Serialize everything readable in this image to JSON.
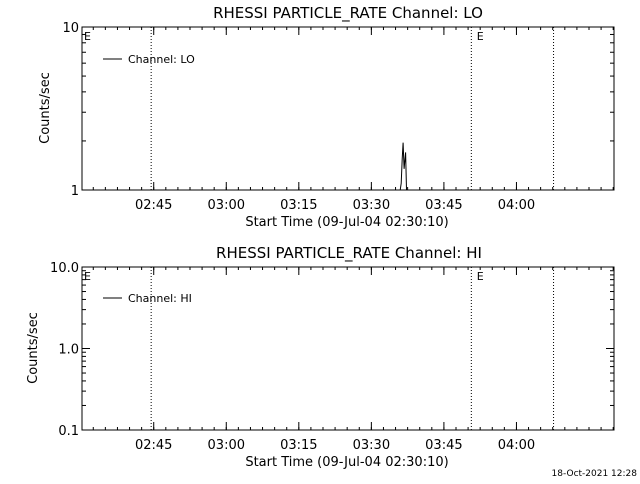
{
  "footer": {
    "timestamp": "18-Oct-2021 12:28"
  },
  "chart_data": [
    {
      "type": "line",
      "title": "RHESSI PARTICLE_RATE Channel: LO",
      "xlabel": "Start Time (09-Jul-04 02:30:10)",
      "ylabel": "Counts/sec",
      "yscale": "log",
      "ylim": [
        1,
        10
      ],
      "xlim_minutes": [
        0,
        110
      ],
      "ytick_values": [
        1,
        10
      ],
      "ytick_labels": [
        "1",
        "10"
      ],
      "xtick_values": [
        14.83,
        29.83,
        44.83,
        59.83,
        74.83,
        89.83
      ],
      "xtick_labels": [
        "02:45",
        "03:00",
        "03:15",
        "03:30",
        "03:45",
        "04:00"
      ],
      "legend": {
        "label": "Channel: LO",
        "position": "top-left"
      },
      "vertical_lines": [
        14.3,
        80.5,
        97.5
      ],
      "markers": [
        {
          "label": "E",
          "x": 0
        },
        {
          "label": "E",
          "x": 81.2
        }
      ],
      "series": [
        {
          "name": "Channel: LO",
          "x": [
            65.8,
            66.0,
            66.2,
            66.4,
            66.6,
            66.9,
            67.1
          ],
          "y": [
            1.0,
            1.1,
            1.55,
            1.95,
            1.35,
            1.7,
            1.0
          ]
        }
      ]
    },
    {
      "type": "line",
      "title": "RHESSI PARTICLE_RATE Channel: HI",
      "xlabel": "Start Time (09-Jul-04 02:30:10)",
      "ylabel": "Counts/sec",
      "yscale": "log",
      "ylim": [
        0.1,
        10
      ],
      "xlim_minutes": [
        0,
        110
      ],
      "ytick_values": [
        0.1,
        1.0,
        10.0
      ],
      "ytick_labels": [
        "0.1",
        "1.0",
        "10.0"
      ],
      "xtick_values": [
        14.83,
        29.83,
        44.83,
        59.83,
        74.83,
        89.83
      ],
      "xtick_labels": [
        "02:45",
        "03:00",
        "03:15",
        "03:30",
        "03:45",
        "04:00"
      ],
      "legend": {
        "label": "Channel: HI",
        "position": "top-left"
      },
      "vertical_lines": [
        14.3,
        80.5,
        97.5
      ],
      "markers": [
        {
          "label": "E",
          "x": 0
        },
        {
          "label": "E",
          "x": 81.2
        }
      ],
      "series": [
        {
          "name": "Channel: HI",
          "x": [],
          "y": []
        }
      ]
    }
  ]
}
